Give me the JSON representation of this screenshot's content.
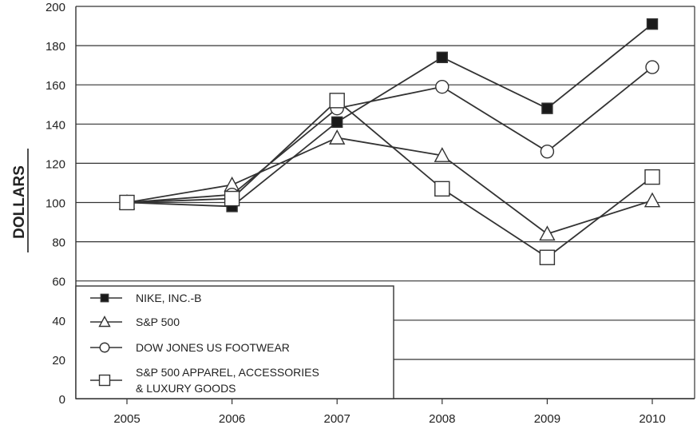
{
  "chart_data": {
    "type": "line",
    "title": "",
    "xlabel": "",
    "ylabel": "DOLLARS",
    "categories": [
      "2005",
      "2006",
      "2007",
      "2008",
      "2009",
      "2010"
    ],
    "ylim": [
      0,
      200
    ],
    "yticks": [
      0,
      20,
      40,
      60,
      80,
      100,
      120,
      140,
      160,
      180,
      200
    ],
    "grid": true,
    "legend_position": "bottom-left",
    "series": [
      {
        "name": "NIKE, INC.-B",
        "marker": "filled-square",
        "values": [
          100,
          98,
          141,
          174,
          148,
          191
        ]
      },
      {
        "name": "S&P 500",
        "marker": "triangle",
        "values": [
          100,
          109,
          133,
          124,
          84,
          101
        ]
      },
      {
        "name": "DOW JONES US FOOTWEAR",
        "marker": "circle",
        "values": [
          100,
          104,
          148,
          159,
          126,
          169
        ]
      },
      {
        "name": "S&P 500 APPAREL, ACCESSORIES & LUXURY GOODS",
        "marker": "square",
        "values": [
          100,
          102,
          152,
          107,
          72,
          113
        ]
      }
    ]
  },
  "legend": {
    "items": [
      {
        "label_lines": [
          "NIKE, INC.-B"
        ]
      },
      {
        "label_lines": [
          "S&P 500"
        ]
      },
      {
        "label_lines": [
          "DOW JONES US FOOTWEAR"
        ]
      },
      {
        "label_lines": [
          "S&P 500 APPAREL, ACCESSORIES",
          "& LUXURY GOODS"
        ]
      }
    ]
  },
  "colors": {
    "line": "#333333",
    "grid": "#333333",
    "text": "#222222",
    "background": "#ffffff"
  }
}
